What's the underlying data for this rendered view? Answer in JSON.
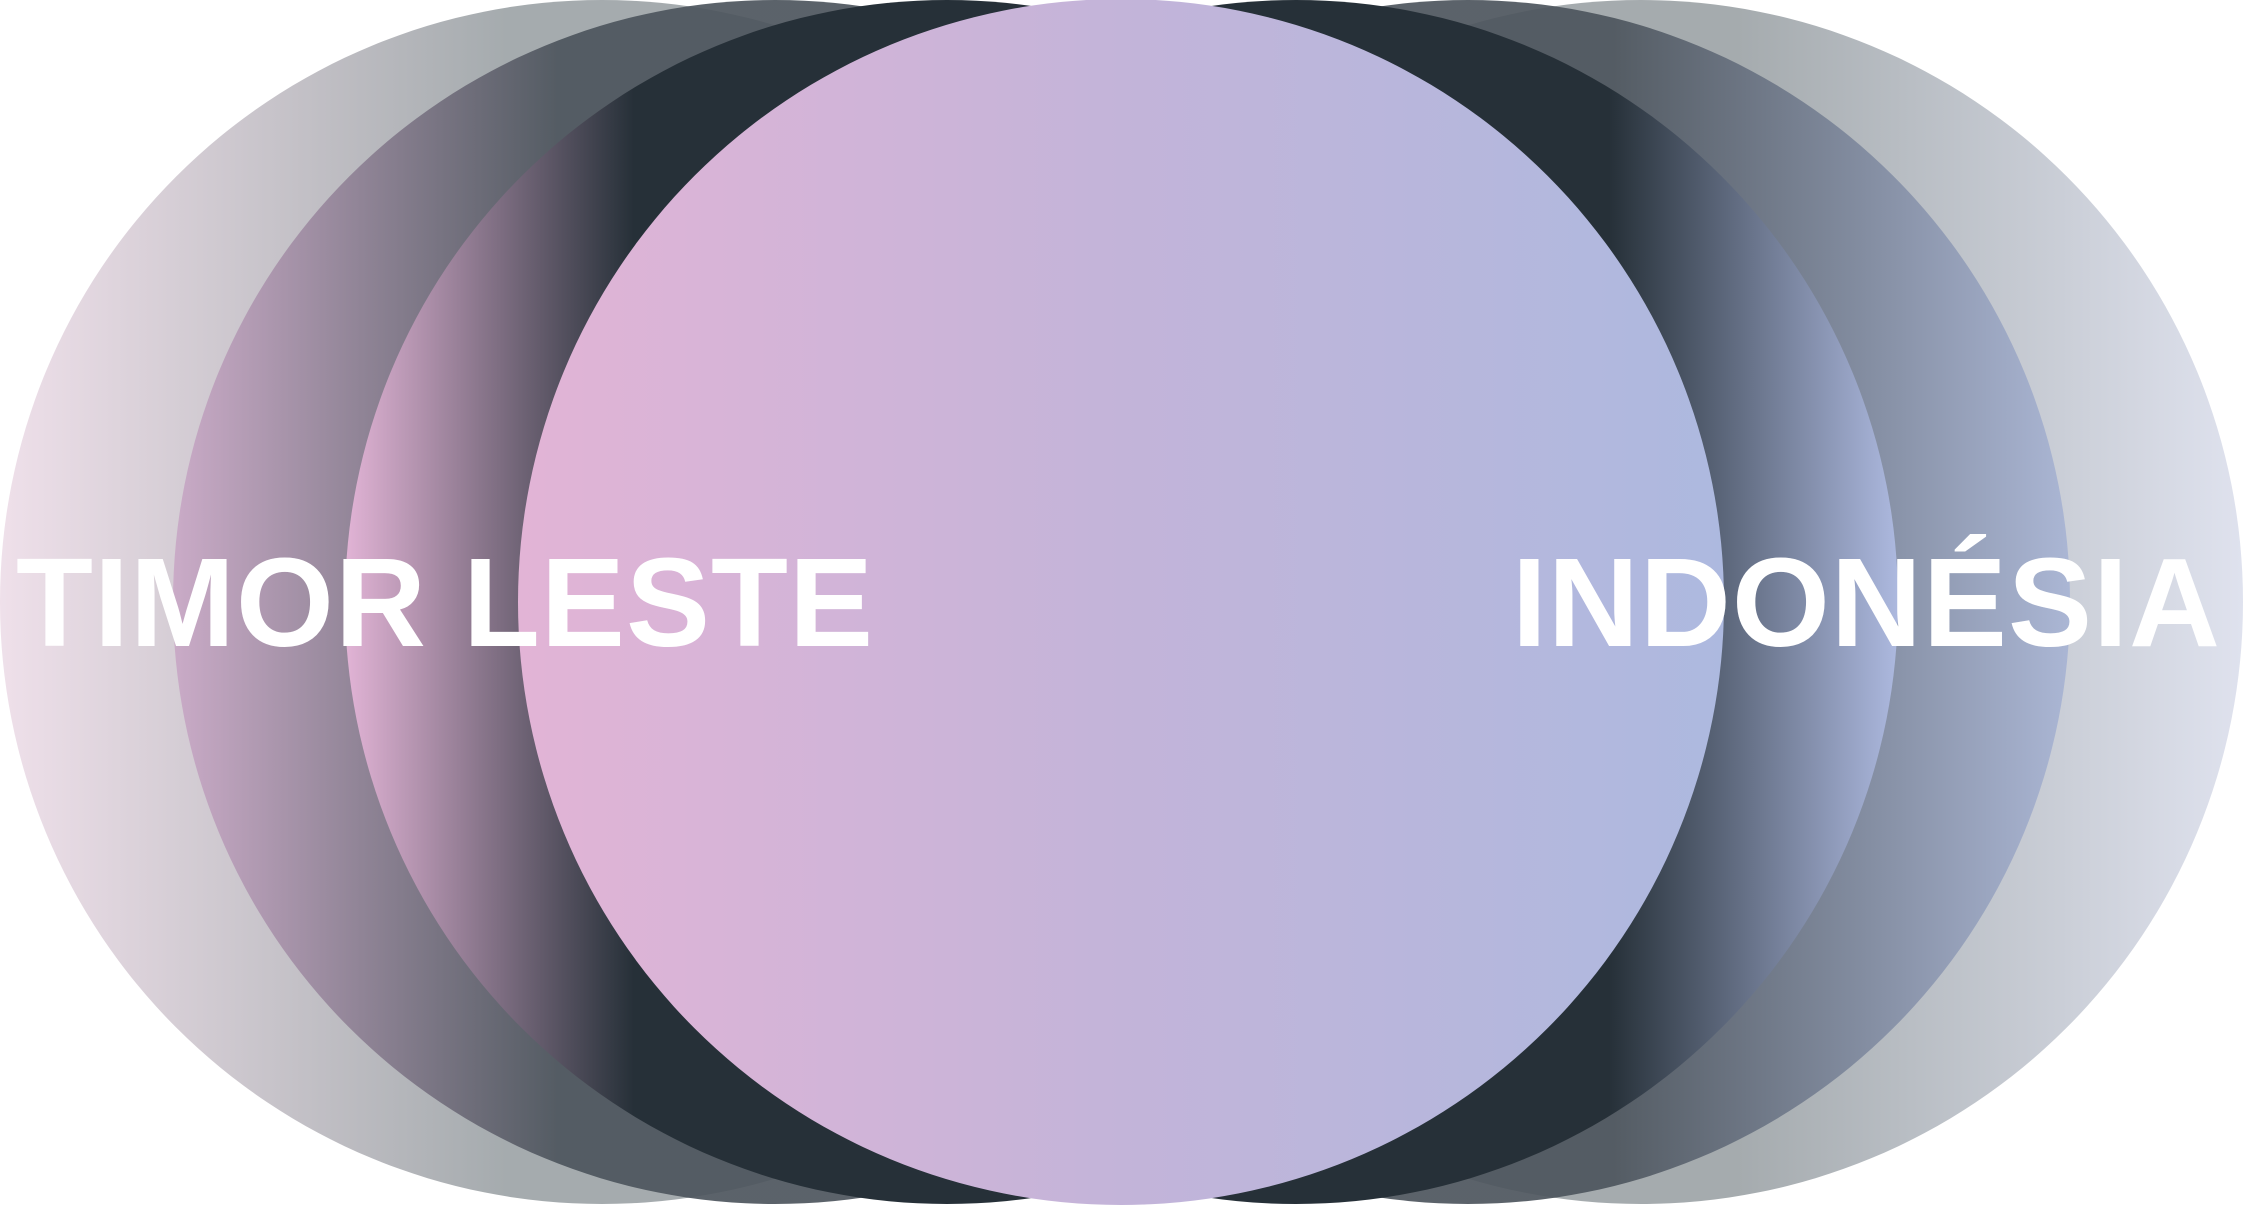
{
  "labels": {
    "left": "TIMOR LESTE",
    "right": "INDONÉSIA"
  },
  "colors": {
    "dark": "#263038",
    "pink": "#e2b4d6",
    "lilac": "#c3b4d9",
    "periwinkle": "#adb9df",
    "grey": "#a5abae",
    "text": "#ffffff"
  }
}
